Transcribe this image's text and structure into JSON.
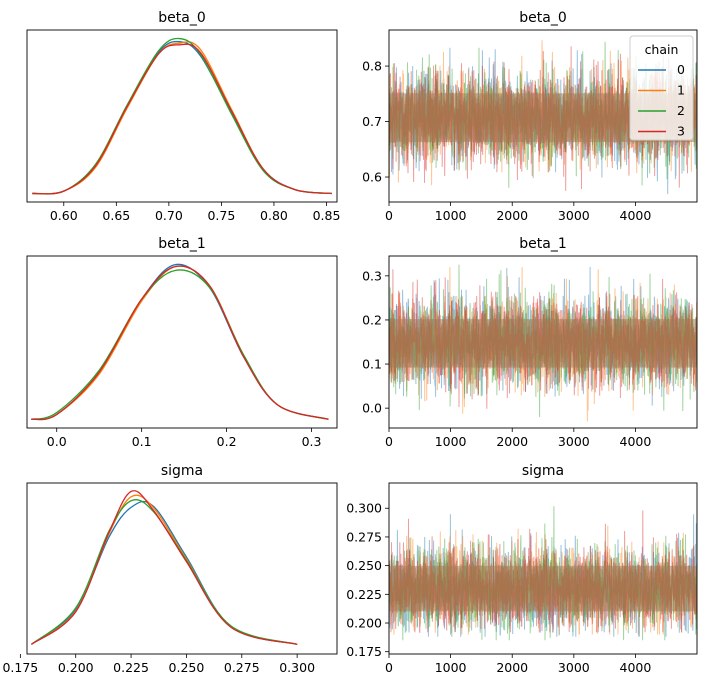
{
  "chart_data": [
    {
      "type": "line",
      "title": "beta_0",
      "xlabel": "",
      "ylabel": "",
      "xlim": [
        0.565,
        0.86
      ],
      "xticks": [
        0.6,
        0.65,
        0.7,
        0.75,
        0.8,
        0.85
      ],
      "xtick_labels": [
        "0.60",
        "0.65",
        "0.70",
        "0.75",
        "0.80",
        "0.85"
      ],
      "yticks": [],
      "grid": false,
      "density_params": {
        "mean": 0.707,
        "sd": 0.04,
        "x_range": [
          0.57,
          0.855
        ]
      },
      "series": [
        {
          "name": "0",
          "x": [
            0.57,
            0.6,
            0.63,
            0.66,
            0.69,
            0.71,
            0.73,
            0.76,
            0.79,
            0.82,
            0.855
          ],
          "y": [
            0.05,
            0.2,
            1.8,
            5.6,
            9.1,
            9.8,
            8.9,
            5.2,
            1.6,
            0.3,
            0.05
          ]
        },
        {
          "name": "1",
          "x": [
            0.57,
            0.6,
            0.63,
            0.66,
            0.69,
            0.71,
            0.73,
            0.76,
            0.79,
            0.82,
            0.855
          ],
          "y": [
            0.05,
            0.2,
            1.7,
            5.5,
            9.0,
            9.7,
            9.3,
            5.4,
            1.6,
            0.3,
            0.05
          ]
        },
        {
          "name": "2",
          "x": [
            0.57,
            0.6,
            0.63,
            0.66,
            0.69,
            0.71,
            0.73,
            0.76,
            0.79,
            0.82,
            0.855
          ],
          "y": [
            0.05,
            0.2,
            1.9,
            5.7,
            9.2,
            10.0,
            9.0,
            5.1,
            1.5,
            0.3,
            0.05
          ]
        },
        {
          "name": "3",
          "x": [
            0.57,
            0.6,
            0.63,
            0.66,
            0.69,
            0.71,
            0.73,
            0.76,
            0.79,
            0.82,
            0.855
          ],
          "y": [
            0.05,
            0.2,
            1.8,
            5.6,
            9.0,
            9.6,
            9.1,
            5.3,
            1.6,
            0.3,
            0.05
          ]
        }
      ]
    },
    {
      "type": "line",
      "title": "beta_0",
      "xlabel": "",
      "ylabel": "",
      "xlim": [
        0,
        4999
      ],
      "ylim": [
        0.555,
        0.865
      ],
      "xticks": [
        0,
        1000,
        2000,
        3000,
        4000
      ],
      "yticks": [
        0.6,
        0.7,
        0.8
      ],
      "ytick_labels": [
        "0.6",
        "0.7",
        "0.8"
      ],
      "grid": false,
      "legend": {
        "title": "chain",
        "placement": "top-right",
        "entries": [
          "0",
          "1",
          "2",
          "3"
        ]
      },
      "trace_params": {
        "draws": 5000,
        "mean": 0.707,
        "sd": 0.04
      },
      "series": [
        {
          "name": "0",
          "mean": 0.707,
          "sd": 0.04,
          "min": 0.565,
          "max": 0.846
        },
        {
          "name": "1",
          "mean": 0.707,
          "sd": 0.04,
          "min": 0.57,
          "max": 0.849
        },
        {
          "name": "2",
          "mean": 0.707,
          "sd": 0.04,
          "min": 0.57,
          "max": 0.846
        },
        {
          "name": "3",
          "mean": 0.707,
          "sd": 0.04,
          "min": 0.575,
          "max": 0.845
        }
      ]
    },
    {
      "type": "line",
      "title": "beta_1",
      "xlabel": "",
      "ylabel": "",
      "xlim": [
        -0.035,
        0.33
      ],
      "xticks": [
        0.0,
        0.1,
        0.2,
        0.3
      ],
      "xtick_labels": [
        "0.0",
        "0.1",
        "0.2",
        "0.3"
      ],
      "yticks": [],
      "grid": false,
      "density_params": {
        "mean": 0.147,
        "sd": 0.05,
        "x_range": [
          -0.03,
          0.32
        ]
      },
      "series": [
        {
          "name": "0",
          "x": [
            -0.03,
            0.0,
            0.05,
            0.1,
            0.14,
            0.18,
            0.22,
            0.26,
            0.32
          ],
          "y": [
            0.05,
            0.3,
            2.5,
            6.3,
            8.1,
            6.9,
            3.3,
            0.8,
            0.05
          ]
        },
        {
          "name": "1",
          "x": [
            -0.03,
            0.0,
            0.05,
            0.1,
            0.14,
            0.18,
            0.22,
            0.26,
            0.32
          ],
          "y": [
            0.05,
            0.3,
            2.4,
            6.2,
            8.0,
            7.0,
            3.4,
            0.8,
            0.05
          ]
        },
        {
          "name": "2",
          "x": [
            -0.03,
            0.0,
            0.05,
            0.1,
            0.14,
            0.18,
            0.22,
            0.26,
            0.32
          ],
          "y": [
            0.05,
            0.4,
            2.6,
            6.3,
            7.8,
            6.9,
            3.4,
            0.8,
            0.05
          ]
        },
        {
          "name": "3",
          "x": [
            -0.03,
            0.0,
            0.05,
            0.1,
            0.14,
            0.18,
            0.22,
            0.26,
            0.32
          ],
          "y": [
            0.05,
            0.3,
            2.5,
            6.3,
            8.0,
            7.0,
            3.3,
            0.8,
            0.05
          ]
        }
      ]
    },
    {
      "type": "line",
      "title": "beta_1",
      "xlabel": "",
      "ylabel": "",
      "xlim": [
        0,
        4999
      ],
      "ylim": [
        -0.045,
        0.345
      ],
      "xticks": [
        0,
        1000,
        2000,
        3000,
        4000
      ],
      "yticks": [
        0.0,
        0.1,
        0.2,
        0.3
      ],
      "ytick_labels": [
        "0.0",
        "0.1",
        "0.2",
        "0.3"
      ],
      "grid": false,
      "trace_params": {
        "draws": 5000,
        "mean": 0.147,
        "sd": 0.05
      },
      "series": [
        {
          "name": "0",
          "mean": 0.147,
          "sd": 0.05,
          "min": -0.02,
          "max": 0.32
        },
        {
          "name": "1",
          "mean": 0.147,
          "sd": 0.05,
          "min": -0.03,
          "max": 0.32
        },
        {
          "name": "2",
          "mean": 0.147,
          "sd": 0.05,
          "min": -0.02,
          "max": 0.325
        },
        {
          "name": "3",
          "mean": 0.147,
          "sd": 0.05,
          "min": -0.015,
          "max": 0.315
        }
      ]
    },
    {
      "type": "line",
      "title": "sigma",
      "xlabel": "",
      "ylabel": "",
      "xlim": [
        0.178,
        0.318
      ],
      "xticks": [
        0.175,
        0.2,
        0.225,
        0.25,
        0.275,
        0.3
      ],
      "xtick_labels": [
        "0.175",
        "0.200",
        "0.225",
        "0.250",
        "0.275",
        "0.300"
      ],
      "yticks": [],
      "grid": false,
      "density_params": {
        "mean": 0.23,
        "sd": 0.018,
        "x_range": [
          0.18,
          0.313
        ]
      },
      "series": [
        {
          "name": "0",
          "x": [
            0.18,
            0.2,
            0.215,
            0.225,
            0.235,
            0.25,
            0.27,
            0.3
          ],
          "y": [
            0.3,
            5.5,
            16.5,
            21.0,
            21.2,
            13.5,
            3.0,
            0.3
          ]
        },
        {
          "name": "1",
          "x": [
            0.18,
            0.2,
            0.215,
            0.225,
            0.235,
            0.25,
            0.27,
            0.3
          ],
          "y": [
            0.3,
            5.3,
            17.0,
            22.6,
            21.0,
            13.2,
            3.0,
            0.3
          ]
        },
        {
          "name": "2",
          "x": [
            0.18,
            0.2,
            0.215,
            0.225,
            0.235,
            0.25,
            0.27,
            0.3
          ],
          "y": [
            0.3,
            5.8,
            17.4,
            22.0,
            20.4,
            13.0,
            3.1,
            0.3
          ]
        },
        {
          "name": "3",
          "x": [
            0.18,
            0.2,
            0.215,
            0.225,
            0.235,
            0.25,
            0.27,
            0.3
          ],
          "y": [
            0.3,
            5.2,
            17.2,
            23.4,
            20.6,
            12.8,
            2.9,
            0.3
          ]
        }
      ]
    },
    {
      "type": "line",
      "title": "sigma",
      "xlabel": "",
      "ylabel": "",
      "xlim": [
        0,
        4999
      ],
      "ylim": [
        0.173,
        0.322
      ],
      "xticks": [
        0,
        1000,
        2000,
        3000,
        4000
      ],
      "yticks": [
        0.175,
        0.2,
        0.225,
        0.25,
        0.275,
        0.3
      ],
      "ytick_labels": [
        "0.175",
        "0.200",
        "0.225",
        "0.250",
        "0.275",
        "0.300"
      ],
      "grid": false,
      "trace_params": {
        "draws": 5000,
        "mean": 0.23,
        "sd": 0.018
      },
      "series": [
        {
          "name": "0",
          "mean": 0.23,
          "sd": 0.018,
          "min": 0.188,
          "max": 0.305
        },
        {
          "name": "1",
          "mean": 0.23,
          "sd": 0.018,
          "min": 0.19,
          "max": 0.313
        },
        {
          "name": "2",
          "mean": 0.23,
          "sd": 0.018,
          "min": 0.185,
          "max": 0.303
        },
        {
          "name": "3",
          "mean": 0.23,
          "sd": 0.018,
          "min": 0.192,
          "max": 0.298
        }
      ]
    }
  ],
  "colors": {
    "chain_0": "#1f77b4",
    "chain_1": "#ff7f0e",
    "chain_2": "#2ca02c",
    "chain_3": "#d62728",
    "axis": "#000000",
    "background": "#ffffff"
  }
}
